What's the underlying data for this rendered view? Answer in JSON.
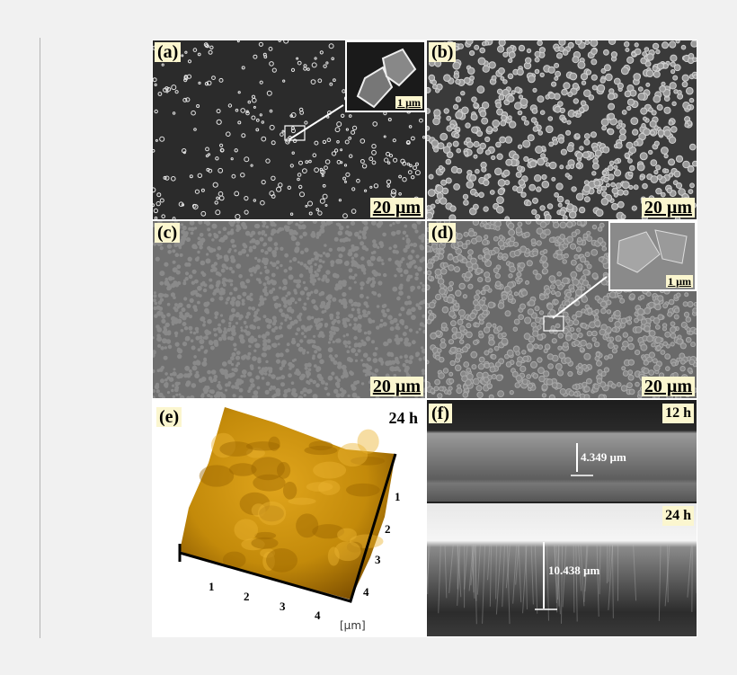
{
  "figure": {
    "panels": {
      "a": {
        "label": "(a)",
        "scale_bar": "20 µm",
        "inset_scale_bar": "1 µm"
      },
      "b": {
        "label": "(b)",
        "scale_bar": "20 µm"
      },
      "c": {
        "label": "(c)",
        "scale_bar": "20 µm"
      },
      "d": {
        "label": "(d)",
        "scale_bar": "20 µm",
        "inset_scale_bar": "1 µm"
      },
      "e": {
        "label": "(e)",
        "time": "24 h",
        "axis_ticks_x": [
          "1",
          "2",
          "3",
          "4"
        ],
        "axis_ticks_y": [
          "1",
          "2",
          "3",
          "4"
        ],
        "unit": "[µm]"
      },
      "f": {
        "label": "(f)",
        "top_time": "12 h",
        "top_thickness": "4.349 µm",
        "bottom_time": "24 h",
        "bottom_thickness": "10.438 µm"
      }
    },
    "colors": {
      "label_bg": "#fbf6cf",
      "afm_surface": "#c98f0a"
    }
  }
}
